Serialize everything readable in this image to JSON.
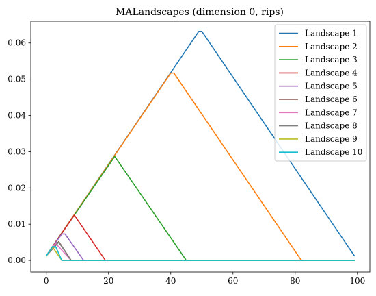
{
  "chart_data": {
    "type": "line",
    "title": "MALandscapes (dimension 0, rips)",
    "xlabel": "",
    "ylabel": "",
    "xlim": [
      -5,
      104
    ],
    "ylim": [
      -0.0032,
      0.066
    ],
    "xticks": [
      "0",
      "20",
      "40",
      "60",
      "80",
      "100"
    ],
    "yticks": [
      "0.00",
      "0.01",
      "0.02",
      "0.03",
      "0.04",
      "0.05",
      "0.06"
    ],
    "xtick_values": [
      0,
      20,
      40,
      60,
      80,
      100
    ],
    "ytick_values": [
      0.0,
      0.01,
      0.02,
      0.03,
      0.04,
      0.05,
      0.06
    ],
    "grid": false,
    "legend_position": "top-right",
    "series": [
      {
        "name": "Landscape 1",
        "color": "#1f77b4",
        "x": [
          0,
          49,
          50,
          99
        ],
        "y": [
          0.0013,
          0.0632,
          0.0632,
          0.0013
        ]
      },
      {
        "name": "Landscape 2",
        "color": "#ff7f0e",
        "x": [
          0,
          40,
          41,
          82,
          99
        ],
        "y": [
          0.0013,
          0.0517,
          0.0517,
          0.0,
          0.0
        ]
      },
      {
        "name": "Landscape 3",
        "color": "#2ca02c",
        "x": [
          0,
          22,
          45,
          99
        ],
        "y": [
          0.0013,
          0.0287,
          0.0,
          0.0
        ]
      },
      {
        "name": "Landscape 4",
        "color": "#d62728",
        "x": [
          0,
          9,
          19,
          99
        ],
        "y": [
          0.0013,
          0.0125,
          0.0,
          0.0
        ]
      },
      {
        "name": "Landscape 5",
        "color": "#9467bd",
        "x": [
          0,
          5,
          6,
          12,
          99
        ],
        "y": [
          0.0013,
          0.0073,
          0.0073,
          0.0,
          0.0
        ]
      },
      {
        "name": "Landscape 6",
        "color": "#8c564b",
        "x": [
          0,
          4,
          8,
          99
        ],
        "y": [
          0.0013,
          0.0052,
          0.0,
          0.0
        ]
      },
      {
        "name": "Landscape 7",
        "color": "#e377c2",
        "x": [
          0,
          3,
          8,
          99
        ],
        "y": [
          0.0013,
          0.0047,
          0.0,
          0.0
        ]
      },
      {
        "name": "Landscape 8",
        "color": "#7f7f7f",
        "x": [
          0,
          4,
          8,
          99
        ],
        "y": [
          0.0013,
          0.005,
          0.0,
          0.0
        ]
      },
      {
        "name": "Landscape 9",
        "color": "#bcbd22",
        "x": [
          0,
          2,
          5,
          99
        ],
        "y": [
          0.0013,
          0.0037,
          0.0,
          0.0
        ]
      },
      {
        "name": "Landscape 10",
        "color": "#17becf",
        "x": [
          0,
          2,
          3,
          5,
          99
        ],
        "y": [
          0.0013,
          0.0038,
          0.0038,
          0.0,
          0.0
        ]
      }
    ]
  }
}
